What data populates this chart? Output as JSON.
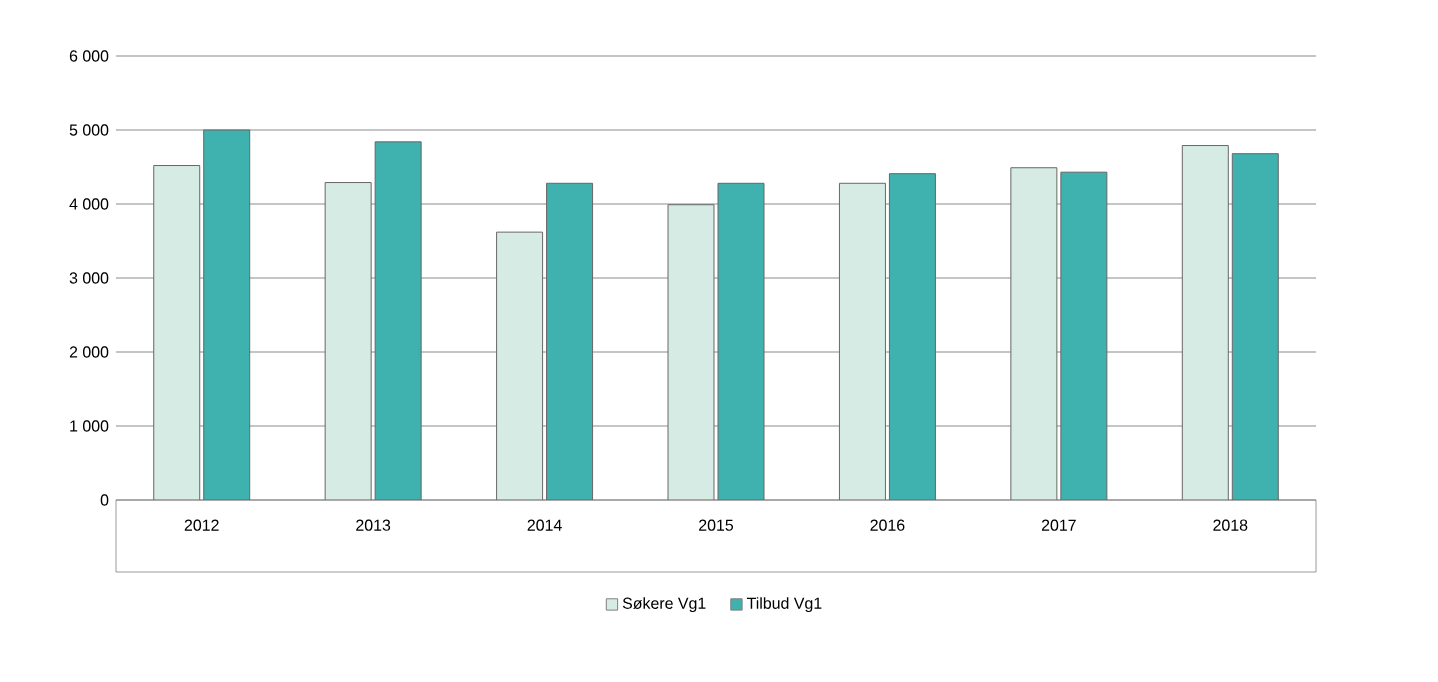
{
  "chart_data": {
    "type": "bar",
    "categories": [
      "2012",
      "2013",
      "2014",
      "2015",
      "2016",
      "2017",
      "2018"
    ],
    "series": [
      {
        "name": "Søkere Vg1",
        "color": "#d5ebe3",
        "values": [
          4520,
          4290,
          3620,
          3990,
          4280,
          4490,
          4790
        ]
      },
      {
        "name": "Tilbud Vg1",
        "color": "#3fb1ae",
        "values": [
          5000,
          4840,
          4280,
          4280,
          4410,
          4430,
          4680
        ]
      }
    ],
    "ylim": [
      0,
      6000
    ],
    "yticks": [
      {
        "value": 0,
        "label": "0"
      },
      {
        "value": 1000,
        "label": "1 000"
      },
      {
        "value": 2000,
        "label": "2 000"
      },
      {
        "value": 3000,
        "label": "3 000"
      },
      {
        "value": 4000,
        "label": "4 000"
      },
      {
        "value": 5000,
        "label": "5 000"
      },
      {
        "value": 6000,
        "label": "6 000"
      }
    ],
    "grid": "y",
    "legend": "bottom"
  }
}
